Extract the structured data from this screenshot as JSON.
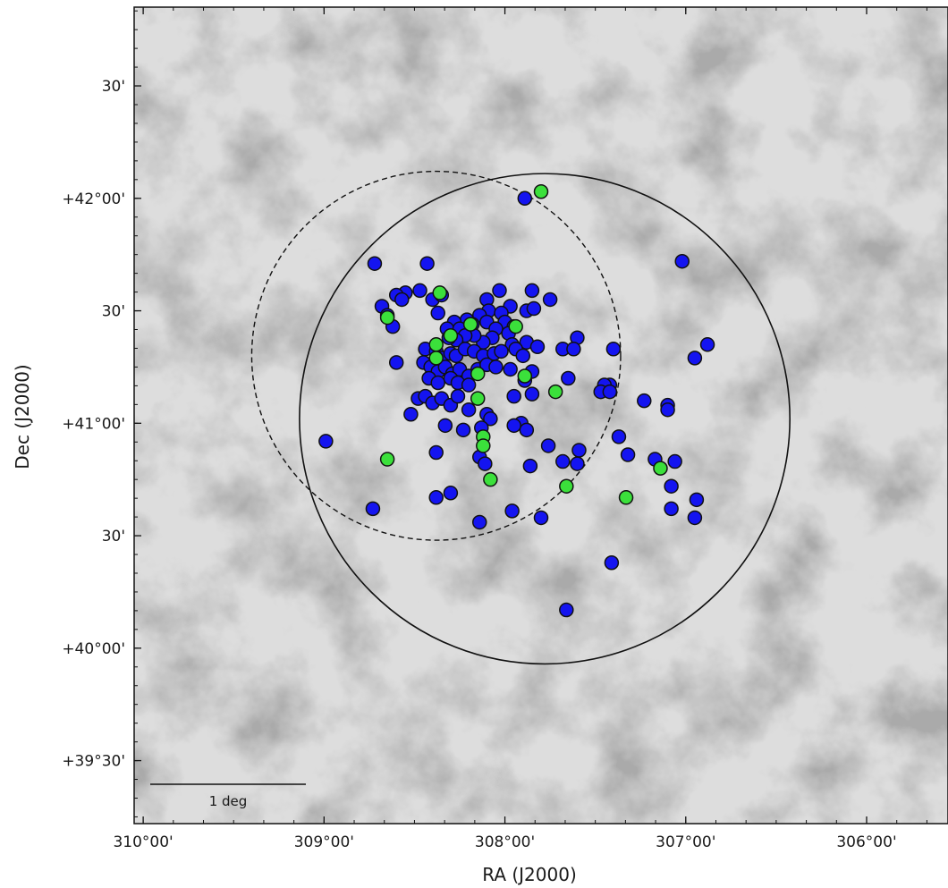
{
  "chart_data": {
    "type": "scatter",
    "title": "",
    "xlabel": "RA (J2000)",
    "ylabel": "Dec (J2000)",
    "x_ticks": [
      {
        "value": 310.0,
        "label": "310°00'"
      },
      {
        "value": 309.0,
        "label": "309°00'"
      },
      {
        "value": 308.0,
        "label": "308°00'"
      },
      {
        "value": 307.0,
        "label": "307°00'"
      },
      {
        "value": 306.0,
        "label": "306°00'"
      }
    ],
    "y_ticks": [
      {
        "value": 42.5,
        "label": "30'"
      },
      {
        "value": 42.0,
        "label": "+42°00'"
      },
      {
        "value": 41.5,
        "label": "30'"
      },
      {
        "value": 41.0,
        "label": "+41°00'"
      },
      {
        "value": 40.5,
        "label": "30'"
      },
      {
        "value": 40.0,
        "label": "+40°00'"
      },
      {
        "value": 39.5,
        "label": "+39°30'"
      }
    ],
    "xlim": [
      310.05,
      305.55
    ],
    "ylim": [
      39.22,
      42.85
    ],
    "scale_bar": {
      "label": "1 deg",
      "length_deg": 1.0
    },
    "circles": [
      {
        "style": "solid",
        "center_ra": 307.78,
        "center_dec": 41.02,
        "radius_deg": 1.09
      },
      {
        "style": "dashed",
        "center_ra": 308.38,
        "center_dec": 41.3,
        "radius_deg": 0.82
      }
    ],
    "series": [
      {
        "color": "#1414f0",
        "points": [
          [
            307.89,
            42.0
          ],
          [
            308.72,
            41.71
          ],
          [
            308.43,
            41.71
          ],
          [
            307.02,
            41.72
          ],
          [
            308.55,
            41.58
          ],
          [
            308.6,
            41.57
          ],
          [
            308.57,
            41.55
          ],
          [
            308.47,
            41.59
          ],
          [
            308.4,
            41.55
          ],
          [
            308.35,
            41.57
          ],
          [
            308.1,
            41.55
          ],
          [
            308.03,
            41.59
          ],
          [
            307.85,
            41.59
          ],
          [
            307.75,
            41.55
          ],
          [
            307.97,
            41.52
          ],
          [
            308.68,
            41.52
          ],
          [
            308.65,
            41.48
          ],
          [
            308.37,
            41.49
          ],
          [
            308.09,
            41.5
          ],
          [
            308.02,
            41.49
          ],
          [
            307.88,
            41.5
          ],
          [
            307.84,
            41.51
          ],
          [
            308.14,
            41.48
          ],
          [
            308.21,
            41.46
          ],
          [
            308.28,
            41.45
          ],
          [
            308.32,
            41.42
          ],
          [
            308.25,
            41.42
          ],
          [
            308.18,
            41.44
          ],
          [
            308.1,
            41.45
          ],
          [
            308.0,
            41.45
          ],
          [
            308.05,
            41.42
          ],
          [
            307.95,
            41.43
          ],
          [
            307.98,
            41.4
          ],
          [
            308.07,
            41.38
          ],
          [
            308.12,
            41.36
          ],
          [
            308.17,
            41.39
          ],
          [
            308.22,
            41.39
          ],
          [
            308.27,
            41.37
          ],
          [
            308.31,
            41.38
          ],
          [
            308.62,
            41.43
          ],
          [
            307.6,
            41.38
          ],
          [
            307.88,
            41.36
          ],
          [
            307.96,
            41.35
          ],
          [
            307.82,
            41.34
          ],
          [
            308.44,
            41.33
          ],
          [
            308.38,
            41.32
          ],
          [
            308.35,
            41.29
          ],
          [
            308.3,
            41.31
          ],
          [
            308.27,
            41.3
          ],
          [
            308.22,
            41.33
          ],
          [
            308.17,
            41.32
          ],
          [
            308.12,
            41.3
          ],
          [
            308.06,
            41.31
          ],
          [
            308.02,
            41.32
          ],
          [
            307.94,
            41.33
          ],
          [
            307.9,
            41.3
          ],
          [
            307.68,
            41.33
          ],
          [
            307.62,
            41.33
          ],
          [
            307.4,
            41.33
          ],
          [
            308.6,
            41.27
          ],
          [
            308.45,
            41.27
          ],
          [
            308.41,
            41.25
          ],
          [
            308.37,
            41.23
          ],
          [
            308.33,
            41.25
          ],
          [
            308.29,
            41.22
          ],
          [
            308.25,
            41.24
          ],
          [
            308.2,
            41.21
          ],
          [
            308.15,
            41.24
          ],
          [
            308.1,
            41.26
          ],
          [
            308.05,
            41.25
          ],
          [
            307.97,
            41.24
          ],
          [
            307.85,
            41.23
          ],
          [
            308.42,
            41.2
          ],
          [
            308.37,
            41.18
          ],
          [
            308.3,
            41.2
          ],
          [
            308.26,
            41.18
          ],
          [
            308.2,
            41.17
          ],
          [
            307.89,
            41.19
          ],
          [
            307.65,
            41.2
          ],
          [
            307.42,
            41.17
          ],
          [
            307.45,
            41.17
          ],
          [
            306.95,
            41.29
          ],
          [
            306.88,
            41.35
          ],
          [
            308.48,
            41.11
          ],
          [
            308.44,
            41.12
          ],
          [
            308.4,
            41.09
          ],
          [
            308.35,
            41.11
          ],
          [
            308.3,
            41.08
          ],
          [
            308.26,
            41.12
          ],
          [
            307.95,
            41.12
          ],
          [
            307.85,
            41.13
          ],
          [
            308.2,
            41.06
          ],
          [
            308.1,
            41.04
          ],
          [
            308.08,
            41.02
          ],
          [
            307.47,
            41.14
          ],
          [
            307.42,
            41.14
          ],
          [
            307.23,
            41.1
          ],
          [
            307.1,
            41.08
          ],
          [
            307.1,
            41.06
          ],
          [
            308.52,
            41.04
          ],
          [
            308.13,
            40.98
          ],
          [
            307.91,
            41.0
          ],
          [
            308.23,
            40.97
          ],
          [
            308.33,
            40.99
          ],
          [
            307.88,
            40.97
          ],
          [
            307.95,
            40.99
          ],
          [
            308.99,
            40.92
          ],
          [
            308.38,
            40.87
          ],
          [
            307.76,
            40.9
          ],
          [
            307.59,
            40.88
          ],
          [
            307.37,
            40.94
          ],
          [
            307.32,
            40.86
          ],
          [
            307.17,
            40.84
          ],
          [
            307.06,
            40.83
          ],
          [
            308.14,
            40.85
          ],
          [
            308.11,
            40.82
          ],
          [
            307.68,
            40.83
          ],
          [
            307.6,
            40.82
          ],
          [
            307.86,
            40.81
          ],
          [
            308.38,
            40.67
          ],
          [
            308.3,
            40.69
          ],
          [
            307.08,
            40.72
          ],
          [
            306.94,
            40.66
          ],
          [
            308.73,
            40.62
          ],
          [
            307.96,
            40.61
          ],
          [
            307.8,
            40.58
          ],
          [
            308.14,
            40.56
          ],
          [
            307.08,
            40.62
          ],
          [
            306.95,
            40.58
          ],
          [
            307.41,
            40.38
          ],
          [
            307.66,
            40.17
          ]
        ]
      },
      {
        "color": "#3be03b",
        "points": [
          [
            307.8,
            42.03
          ],
          [
            308.36,
            41.58
          ],
          [
            308.65,
            41.47
          ],
          [
            308.19,
            41.44
          ],
          [
            307.94,
            41.43
          ],
          [
            308.3,
            41.39
          ],
          [
            308.38,
            41.35
          ],
          [
            308.38,
            41.29
          ],
          [
            308.15,
            41.22
          ],
          [
            307.89,
            41.21
          ],
          [
            307.72,
            41.14
          ],
          [
            308.15,
            41.11
          ],
          [
            308.12,
            40.94
          ],
          [
            308.12,
            40.9
          ],
          [
            308.65,
            40.84
          ],
          [
            307.14,
            40.8
          ],
          [
            308.08,
            40.75
          ],
          [
            307.66,
            40.72
          ],
          [
            307.33,
            40.67
          ]
        ]
      }
    ]
  }
}
